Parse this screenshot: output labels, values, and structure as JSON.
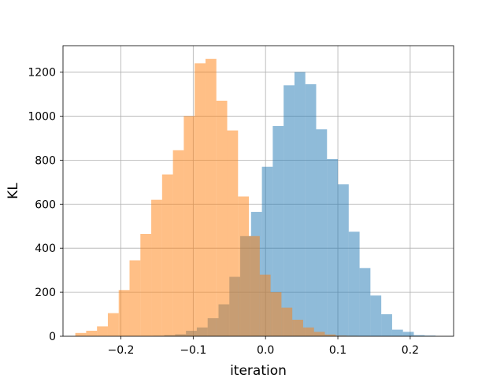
{
  "chart_data": {
    "type": "histogram",
    "title": "",
    "xlabel": "iteration",
    "ylabel": "KL",
    "xlim": [
      -0.28,
      0.26
    ],
    "ylim": [
      0,
      1320
    ],
    "grid": true,
    "legend": "none",
    "xticks": [
      -0.2,
      -0.1,
      0.0,
      0.1,
      0.2
    ],
    "xtick_labels": [
      "−0.2",
      "−0.1",
      "0.0",
      "0.1",
      "0.2"
    ],
    "yticks": [
      0,
      200,
      400,
      600,
      800,
      1000,
      1200
    ],
    "ytick_labels": [
      "0",
      "200",
      "400",
      "600",
      "800",
      "1000",
      "1200"
    ],
    "series": [
      {
        "color": "#1f77b4",
        "opacity": 0.5,
        "bins": [
          [
            -0.155,
            -0.14,
            2
          ],
          [
            -0.14,
            -0.125,
            5
          ],
          [
            -0.125,
            -0.11,
            9
          ],
          [
            -0.11,
            -0.095,
            25
          ],
          [
            -0.095,
            -0.08,
            40
          ],
          [
            -0.08,
            -0.065,
            82
          ],
          [
            -0.065,
            -0.05,
            145
          ],
          [
            -0.05,
            -0.035,
            270
          ],
          [
            -0.035,
            -0.02,
            455
          ],
          [
            -0.02,
            -0.005,
            565
          ],
          [
            -0.005,
            0.01,
            770
          ],
          [
            0.01,
            0.025,
            955
          ],
          [
            0.025,
            0.04,
            1140
          ],
          [
            0.04,
            0.055,
            1200
          ],
          [
            0.055,
            0.07,
            1145
          ],
          [
            0.07,
            0.085,
            940
          ],
          [
            0.085,
            0.1,
            805
          ],
          [
            0.1,
            0.115,
            690
          ],
          [
            0.115,
            0.13,
            475
          ],
          [
            0.13,
            0.145,
            310
          ],
          [
            0.145,
            0.16,
            185
          ],
          [
            0.16,
            0.175,
            100
          ],
          [
            0.175,
            0.19,
            30
          ],
          [
            0.19,
            0.205,
            20
          ],
          [
            0.205,
            0.22,
            5
          ],
          [
            0.22,
            0.235,
            3
          ]
        ]
      },
      {
        "color": "#ff7f0e",
        "opacity": 0.5,
        "bins": [
          [
            -0.263,
            -0.248,
            15
          ],
          [
            -0.248,
            -0.233,
            25
          ],
          [
            -0.233,
            -0.218,
            45
          ],
          [
            -0.218,
            -0.203,
            105
          ],
          [
            -0.203,
            -0.188,
            210
          ],
          [
            -0.188,
            -0.173,
            345
          ],
          [
            -0.173,
            -0.158,
            465
          ],
          [
            -0.158,
            -0.143,
            620
          ],
          [
            -0.143,
            -0.128,
            735
          ],
          [
            -0.128,
            -0.113,
            845
          ],
          [
            -0.113,
            -0.098,
            1000
          ],
          [
            -0.098,
            -0.083,
            1240
          ],
          [
            -0.083,
            -0.068,
            1260
          ],
          [
            -0.068,
            -0.053,
            1070
          ],
          [
            -0.053,
            -0.038,
            935
          ],
          [
            -0.038,
            -0.023,
            635
          ],
          [
            -0.023,
            -0.008,
            455
          ],
          [
            -0.008,
            0.007,
            280
          ],
          [
            0.007,
            0.022,
            200
          ],
          [
            0.022,
            0.037,
            130
          ],
          [
            0.037,
            0.052,
            75
          ],
          [
            0.052,
            0.067,
            40
          ],
          [
            0.067,
            0.082,
            20
          ],
          [
            0.082,
            0.097,
            8
          ],
          [
            0.097,
            0.112,
            3
          ],
          [
            0.112,
            0.127,
            2
          ]
        ]
      }
    ]
  }
}
